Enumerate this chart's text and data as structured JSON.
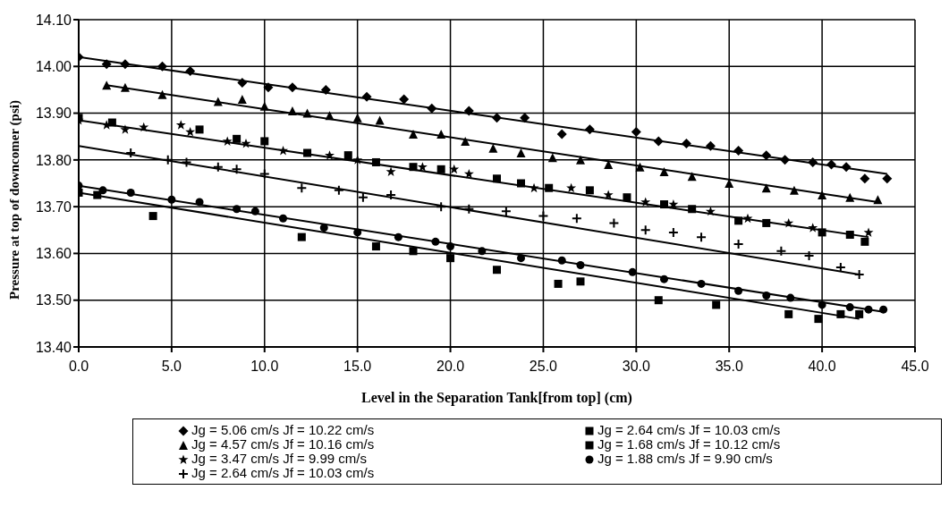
{
  "chart_data": {
    "type": "scatter",
    "xlabel": "Level in the Separation Tank[from top] (cm)",
    "ylabel": "Pressure at top of downcomer (psi)",
    "xlim": [
      0,
      45
    ],
    "xticks": [
      {
        "value": 0,
        "label": "0.0"
      },
      {
        "value": 5,
        "label": "5.0"
      },
      {
        "value": 10,
        "label": "10.0"
      },
      {
        "value": 15,
        "label": "15.0"
      },
      {
        "value": 20,
        "label": "20.0"
      },
      {
        "value": 25,
        "label": "25.0"
      },
      {
        "value": 30,
        "label": "30.0"
      },
      {
        "value": 35,
        "label": "35.0"
      },
      {
        "value": 40,
        "label": "40.0"
      },
      {
        "value": 45,
        "label": "45.0"
      }
    ],
    "ylim": [
      13.4,
      14.1
    ],
    "yticks": [
      {
        "value": 13.4,
        "label": "13.40"
      },
      {
        "value": 13.5,
        "label": "13.50"
      },
      {
        "value": 13.6,
        "label": "13.60"
      },
      {
        "value": 13.7,
        "label": "13.70"
      },
      {
        "value": 13.8,
        "label": "13.80"
      },
      {
        "value": 13.9,
        "label": "13.90"
      },
      {
        "value": 14.0,
        "label": "14.00"
      },
      {
        "value": 14.1,
        "label": "14.10"
      }
    ],
    "grid": true,
    "legend": "bottom",
    "series": [
      {
        "name": "Jg = 5.06 cm/s Jf = 10.22 cm/s",
        "color": "#000000",
        "marker": "diamond",
        "x": [
          0,
          1.5,
          2.5,
          4.5,
          6,
          8.8,
          10.2,
          11.5,
          13.3,
          15.5,
          17.5,
          19,
          21,
          22.5,
          24,
          26,
          27.5,
          30,
          31.2,
          32.7,
          34,
          35.5,
          37,
          38,
          39.5,
          40.5,
          41.3,
          42.3,
          43.5
        ],
        "values": [
          14.02,
          14.005,
          14.005,
          14.0,
          13.99,
          13.965,
          13.955,
          13.955,
          13.95,
          13.935,
          13.93,
          13.91,
          13.905,
          13.89,
          13.89,
          13.855,
          13.865,
          13.86,
          13.84,
          13.835,
          13.83,
          13.82,
          13.81,
          13.8,
          13.795,
          13.79,
          13.785,
          13.76,
          13.76
        ]
      },
      {
        "name": "Jg = 4.57 cm/s Jf = 10.16 cm/s",
        "color": "#000000",
        "marker": "triangle",
        "x": [
          1.5,
          2.5,
          4.5,
          7.5,
          8.8,
          10,
          11.5,
          12.3,
          13.5,
          15,
          16.2,
          18,
          19.5,
          20.8,
          22.3,
          23.8,
          25.5,
          27,
          28.5,
          30.2,
          31.5,
          33,
          35,
          37,
          38.5,
          40,
          41.5,
          43
        ],
        "values": [
          13.96,
          13.955,
          13.94,
          13.925,
          13.93,
          13.915,
          13.905,
          13.9,
          13.895,
          13.89,
          13.885,
          13.855,
          13.855,
          13.84,
          13.825,
          13.815,
          13.805,
          13.8,
          13.79,
          13.785,
          13.775,
          13.765,
          13.75,
          13.74,
          13.735,
          13.725,
          13.72,
          13.715
        ]
      },
      {
        "name": "Jg = 3.47 cm/s Jf = 9.99 cm/s",
        "color": "#000000",
        "marker": "star",
        "x": [
          0,
          1.5,
          2.5,
          3.5,
          5.5,
          6,
          8,
          9,
          11,
          12.5,
          13.5,
          15,
          16.8,
          18.5,
          20.2,
          21,
          22.5,
          24.5,
          26.5,
          28.5,
          30.5,
          32,
          34,
          36,
          38.2,
          39.5,
          42.5
        ],
        "values": [
          13.885,
          13.875,
          13.865,
          13.87,
          13.875,
          13.86,
          13.84,
          13.835,
          13.82,
          null,
          13.81,
          13.8,
          13.775,
          13.785,
          13.78,
          13.77,
          null,
          13.74,
          13.74,
          13.725,
          13.71,
          13.705,
          13.69,
          13.675,
          13.665,
          13.655,
          13.645
        ]
      },
      {
        "name": "Jg = 2.64 cm/s Jf = 10.03 cm/s",
        "color": "#000000",
        "marker": "cross",
        "x": [
          2.8,
          4.8,
          5.8,
          7.5,
          8.5,
          10,
          12,
          14,
          15.3,
          16.8,
          19.5,
          21,
          23,
          25,
          26.8,
          28.8,
          30.5,
          32,
          33.5,
          35.5,
          37.8,
          39.3,
          41,
          42
        ],
        "values": [
          13.815,
          13.8,
          13.795,
          13.785,
          13.78,
          13.77,
          13.74,
          13.735,
          13.72,
          13.725,
          13.7,
          13.695,
          13.69,
          13.68,
          13.675,
          13.665,
          13.65,
          13.645,
          13.635,
          13.62,
          13.605,
          13.595,
          13.57,
          13.555
        ]
      },
      {
        "name": "Jg = 2.64 cm/s Jf = 10.03 cm/s",
        "color": "#000000",
        "marker": "square",
        "x": [
          0,
          1,
          4,
          12,
          16,
          18,
          20,
          22.5,
          25.8,
          27,
          31.2,
          34.3,
          38.2,
          39.8,
          41,
          42
        ],
        "values": [
          13.73,
          13.725,
          13.68,
          13.635,
          13.615,
          13.605,
          13.59,
          13.565,
          13.535,
          13.54,
          13.5,
          13.49,
          13.47,
          13.46,
          13.47,
          13.47
        ]
      },
      {
        "name": "Jg = 1.68 cm/s Jf = 10.12 cm/s",
        "color": "#000000",
        "marker": "square",
        "x": [
          0,
          1.8,
          3.5,
          6.5,
          8.5,
          10,
          12.3,
          14.5,
          16,
          18,
          19.5,
          22.5,
          23.8,
          25.3,
          27.5,
          29.5,
          31.5,
          33,
          35.5,
          37,
          40,
          41.5,
          42.3
        ],
        "values": [
          13.89,
          13.88,
          null,
          13.865,
          13.845,
          13.84,
          13.815,
          13.81,
          13.795,
          13.785,
          13.78,
          13.76,
          13.75,
          13.74,
          13.735,
          13.72,
          13.705,
          13.695,
          13.67,
          13.665,
          13.645,
          13.64,
          13.625
        ]
      },
      {
        "name": "Jg = 1.88 cm/s Jf = 9.90 cm/s",
        "color": "#000000",
        "marker": "circle",
        "x": [
          0,
          1.3,
          2.8,
          5,
          6.5,
          8.5,
          9.5,
          11,
          13.2,
          15,
          17.2,
          19.2,
          20,
          21.7,
          23.8,
          26,
          27,
          29.8,
          31.5,
          33.5,
          35.5,
          37,
          38.3,
          40,
          41.5,
          42.5,
          43.3
        ],
        "values": [
          13.745,
          13.735,
          13.73,
          13.715,
          13.71,
          13.695,
          13.69,
          13.675,
          13.655,
          13.645,
          13.635,
          13.625,
          13.615,
          13.605,
          13.59,
          13.585,
          13.575,
          13.56,
          13.545,
          13.535,
          13.52,
          13.51,
          13.505,
          13.49,
          13.485,
          13.48,
          13.48
        ]
      },
      {
        "type": "line",
        "color": "#000000",
        "marker": "none",
        "x": [
          0,
          43.5
        ],
        "values": [
          14.02,
          13.77
        ]
      },
      {
        "type": "line",
        "color": "#000000",
        "marker": "none",
        "x": [
          1.5,
          43
        ],
        "values": [
          13.96,
          13.71
        ]
      },
      {
        "type": "line",
        "color": "#000000",
        "marker": "none",
        "x": [
          0,
          42.5
        ],
        "values": [
          13.885,
          13.635
        ]
      },
      {
        "type": "line",
        "color": "#000000",
        "marker": "none",
        "x": [
          0,
          42
        ],
        "values": [
          13.83,
          13.555
        ]
      },
      {
        "type": "line",
        "color": "#000000",
        "marker": "none",
        "x": [
          0,
          43.3
        ],
        "values": [
          13.745,
          13.475
        ]
      },
      {
        "type": "line",
        "color": "#000000",
        "marker": "none",
        "x": [
          0,
          42
        ],
        "values": [
          13.73,
          13.46
        ]
      }
    ]
  }
}
